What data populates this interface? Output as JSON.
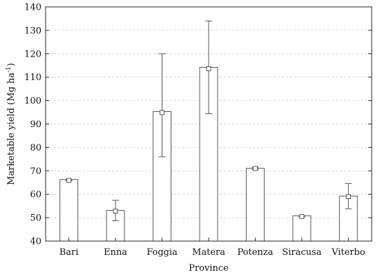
{
  "chart_data": {
    "type": "bar",
    "xlabel": "Province",
    "ylabel": {
      "main": "Marketable yield (Mg ha",
      "sup": "-1",
      "close": ")"
    },
    "ylim": [
      40,
      140
    ],
    "yticks": [
      40,
      50,
      60,
      70,
      80,
      90,
      100,
      110,
      120,
      130,
      140
    ],
    "grid": "horizontal-dashed",
    "categories": [
      "Bari",
      "Enna",
      "Foggia",
      "Matera",
      "Potenza",
      "Siracusa",
      "Viterbo"
    ],
    "values": [
      66.3,
      53.1,
      95.3,
      114.2,
      71.1,
      50.8,
      59.2
    ],
    "markers": [
      65.9,
      52.8,
      94.9,
      113.6,
      71.0,
      50.5,
      59.0
    ],
    "error_low": [
      65.8,
      48.7,
      76.0,
      94.4,
      70.6,
      50.3,
      53.8
    ],
    "error_high": [
      66.0,
      57.4,
      120.0,
      134.0,
      71.5,
      50.7,
      64.6
    ],
    "colors": {
      "bar_fill": "#ffffff",
      "bar_stroke": "#555555",
      "axis": "#222222",
      "grid": "#cccccc"
    }
  }
}
